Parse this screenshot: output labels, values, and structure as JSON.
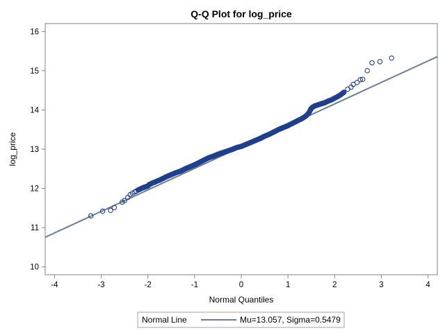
{
  "chart_data": {
    "type": "scatter",
    "title": "Q-Q Plot for log_price",
    "xlabel": "Normal Quantiles",
    "ylabel": "log_price",
    "xlim": [
      -4.2,
      4.2
    ],
    "ylim": [
      9.8,
      16.2
    ],
    "xticks": [
      "-4",
      "-3",
      "-2",
      "-1",
      "0",
      "1",
      "2",
      "3",
      "4"
    ],
    "yticks": [
      "10",
      "11",
      "12",
      "13",
      "14",
      "15",
      "16"
    ],
    "grid": false,
    "colors": {
      "marker": "#1f3f8f",
      "line": "#667f99"
    },
    "reference_line": {
      "name": "Normal Line",
      "mu": 13.057,
      "sigma": 0.5479,
      "label": "Mu=13.057, Sigma=0.5479"
    },
    "legend": {
      "position": "bottom",
      "title": "Normal Line",
      "entry": "Mu=13.057, Sigma=0.5479"
    },
    "series": [
      {
        "x": [
          -3.22,
          -2.97,
          -2.8,
          -2.72,
          -2.55,
          -2.5,
          -2.43,
          -2.38,
          -2.33,
          -2.28,
          -2.25,
          -2.21,
          -2.17,
          -2.14,
          -2.1,
          -2.07,
          -2.03,
          -2.0,
          -1.97,
          -1.93,
          -1.9,
          -1.85,
          -1.8,
          -1.75,
          -1.7,
          -1.6,
          -1.5,
          -1.4,
          -1.3,
          -1.2,
          -1.1,
          -1.0,
          -0.9,
          -0.8,
          -0.7,
          -0.6,
          -0.5,
          -0.4,
          -0.3,
          -0.2,
          -0.1,
          0.0,
          0.1,
          0.2,
          0.3,
          0.4,
          0.5,
          0.6,
          0.7,
          0.8,
          0.9,
          1.0,
          1.1,
          1.2,
          1.3,
          1.38,
          1.43,
          1.46,
          1.48,
          1.5,
          1.53,
          1.57,
          1.62,
          1.67,
          1.72,
          1.78,
          1.85,
          1.92,
          2.0,
          2.05,
          2.12,
          2.2,
          2.28,
          2.35,
          2.4,
          2.48,
          2.55,
          2.6,
          2.7,
          2.8,
          2.97,
          3.22
        ],
        "y": [
          11.3,
          11.42,
          11.44,
          11.51,
          11.65,
          11.69,
          11.77,
          11.84,
          11.88,
          11.91,
          11.93,
          11.96,
          11.98,
          12.0,
          12.02,
          12.03,
          12.05,
          12.06,
          12.1,
          12.12,
          12.14,
          12.16,
          12.19,
          12.21,
          12.24,
          12.3,
          12.35,
          12.4,
          12.44,
          12.5,
          12.55,
          12.6,
          12.66,
          12.72,
          12.78,
          12.82,
          12.87,
          12.91,
          12.95,
          12.99,
          13.04,
          13.07,
          13.12,
          13.17,
          13.22,
          13.27,
          13.33,
          13.38,
          13.44,
          13.5,
          13.55,
          13.6,
          13.66,
          13.72,
          13.78,
          13.84,
          13.9,
          13.95,
          14.0,
          14.04,
          14.07,
          14.1,
          14.12,
          14.14,
          14.16,
          14.18,
          14.22,
          14.25,
          14.3,
          14.33,
          14.38,
          14.45,
          14.53,
          14.58,
          14.65,
          14.7,
          14.77,
          14.78,
          15.0,
          15.2,
          15.23,
          15.32
        ]
      }
    ]
  }
}
